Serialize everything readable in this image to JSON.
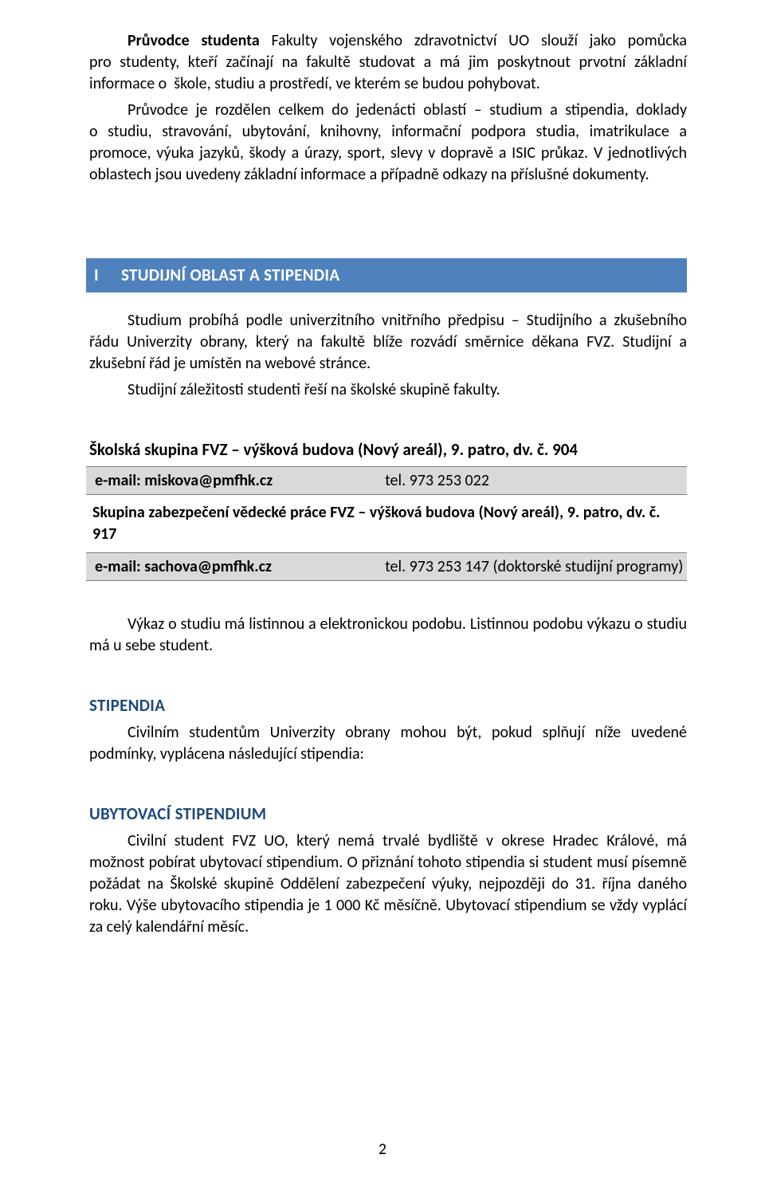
{
  "intro": {
    "p1_a": "Průvodce studenta",
    "p1_b": " Fakulty vojenského zdravotnictví UO slouží jako pomůcka pro studenty, kteří začínají na fakultě studovat a má jim poskytnout prvotní základní informace o  škole, studiu a prostředí, ve kterém se budou pohybovat.",
    "p2": "Průvodce je rozdělen celkem do jedenácti oblastí – studium a stipendia, doklady o studiu, stravování, ubytování, knihovny, informační podpora studia, imatrikulace a promoce, výuka jazyků, škody a úrazy, sport, slevy v dopravě a ISIC průkaz. V jednotlivých oblastech jsou uvedeny základní informace a případně odkazy na příslušné dokumenty."
  },
  "section": {
    "num": "I",
    "title": "STUDIJNÍ OBLAST A STIPENDIA",
    "p1": "Studium probíhá podle univerzitního vnitřního předpisu – Studijního a zkušebního řádu Univerzity obrany, který na fakultě blíže rozvádí směrnice děkana FVZ. Studijní a zkušební řád je umístěn na webové stránce.",
    "p2": "Studijní záležitosti studenti řeší na školské skupině fakulty.",
    "loc1": "Školská skupina FVZ – výšková budova (Nový areál), 9. patro, dv. č. 904",
    "row1_left": "e-mail: miskova@pmfhk.cz",
    "row1_right": "tel. 973 253 022",
    "loc2": "Skupina zabezpečení vědecké práce FVZ – výšková budova (Nový areál), 9. patro, dv. č. 917",
    "row2_left": "e-mail: sachova@pmfhk.cz",
    "row2_right": "tel. 973 253 147 (doktorské studijní programy)",
    "p3": "Výkaz o studiu má listinnou a elektronickou podobu. Listinnou podobu výkazu o studiu má u sebe student."
  },
  "stip": {
    "title": "STIPENDIA",
    "p1": "Civilním studentům Univerzity obrany mohou být, pokud splňují níže uvedené podmínky, vyplácena následující stipendia:"
  },
  "ubyt": {
    "title": "UBYTOVACÍ STIPENDIUM",
    "p1": "Civilní student FVZ UO, který nemá trvalé bydliště v okrese Hradec Králové, má možnost pobírat ubytovací stipendium. O přiznání tohoto stipendia si student musí písemně požádat na Školské skupině Oddělení zabezpečení výuky, nejpozději do 31. října daného roku. Výše ubytovacího stipendia je 1 000 Kč měsíčně. Ubytovací stipendium se vždy vyplácí za celý kalendářní měsíc."
  },
  "pagenum": "2"
}
